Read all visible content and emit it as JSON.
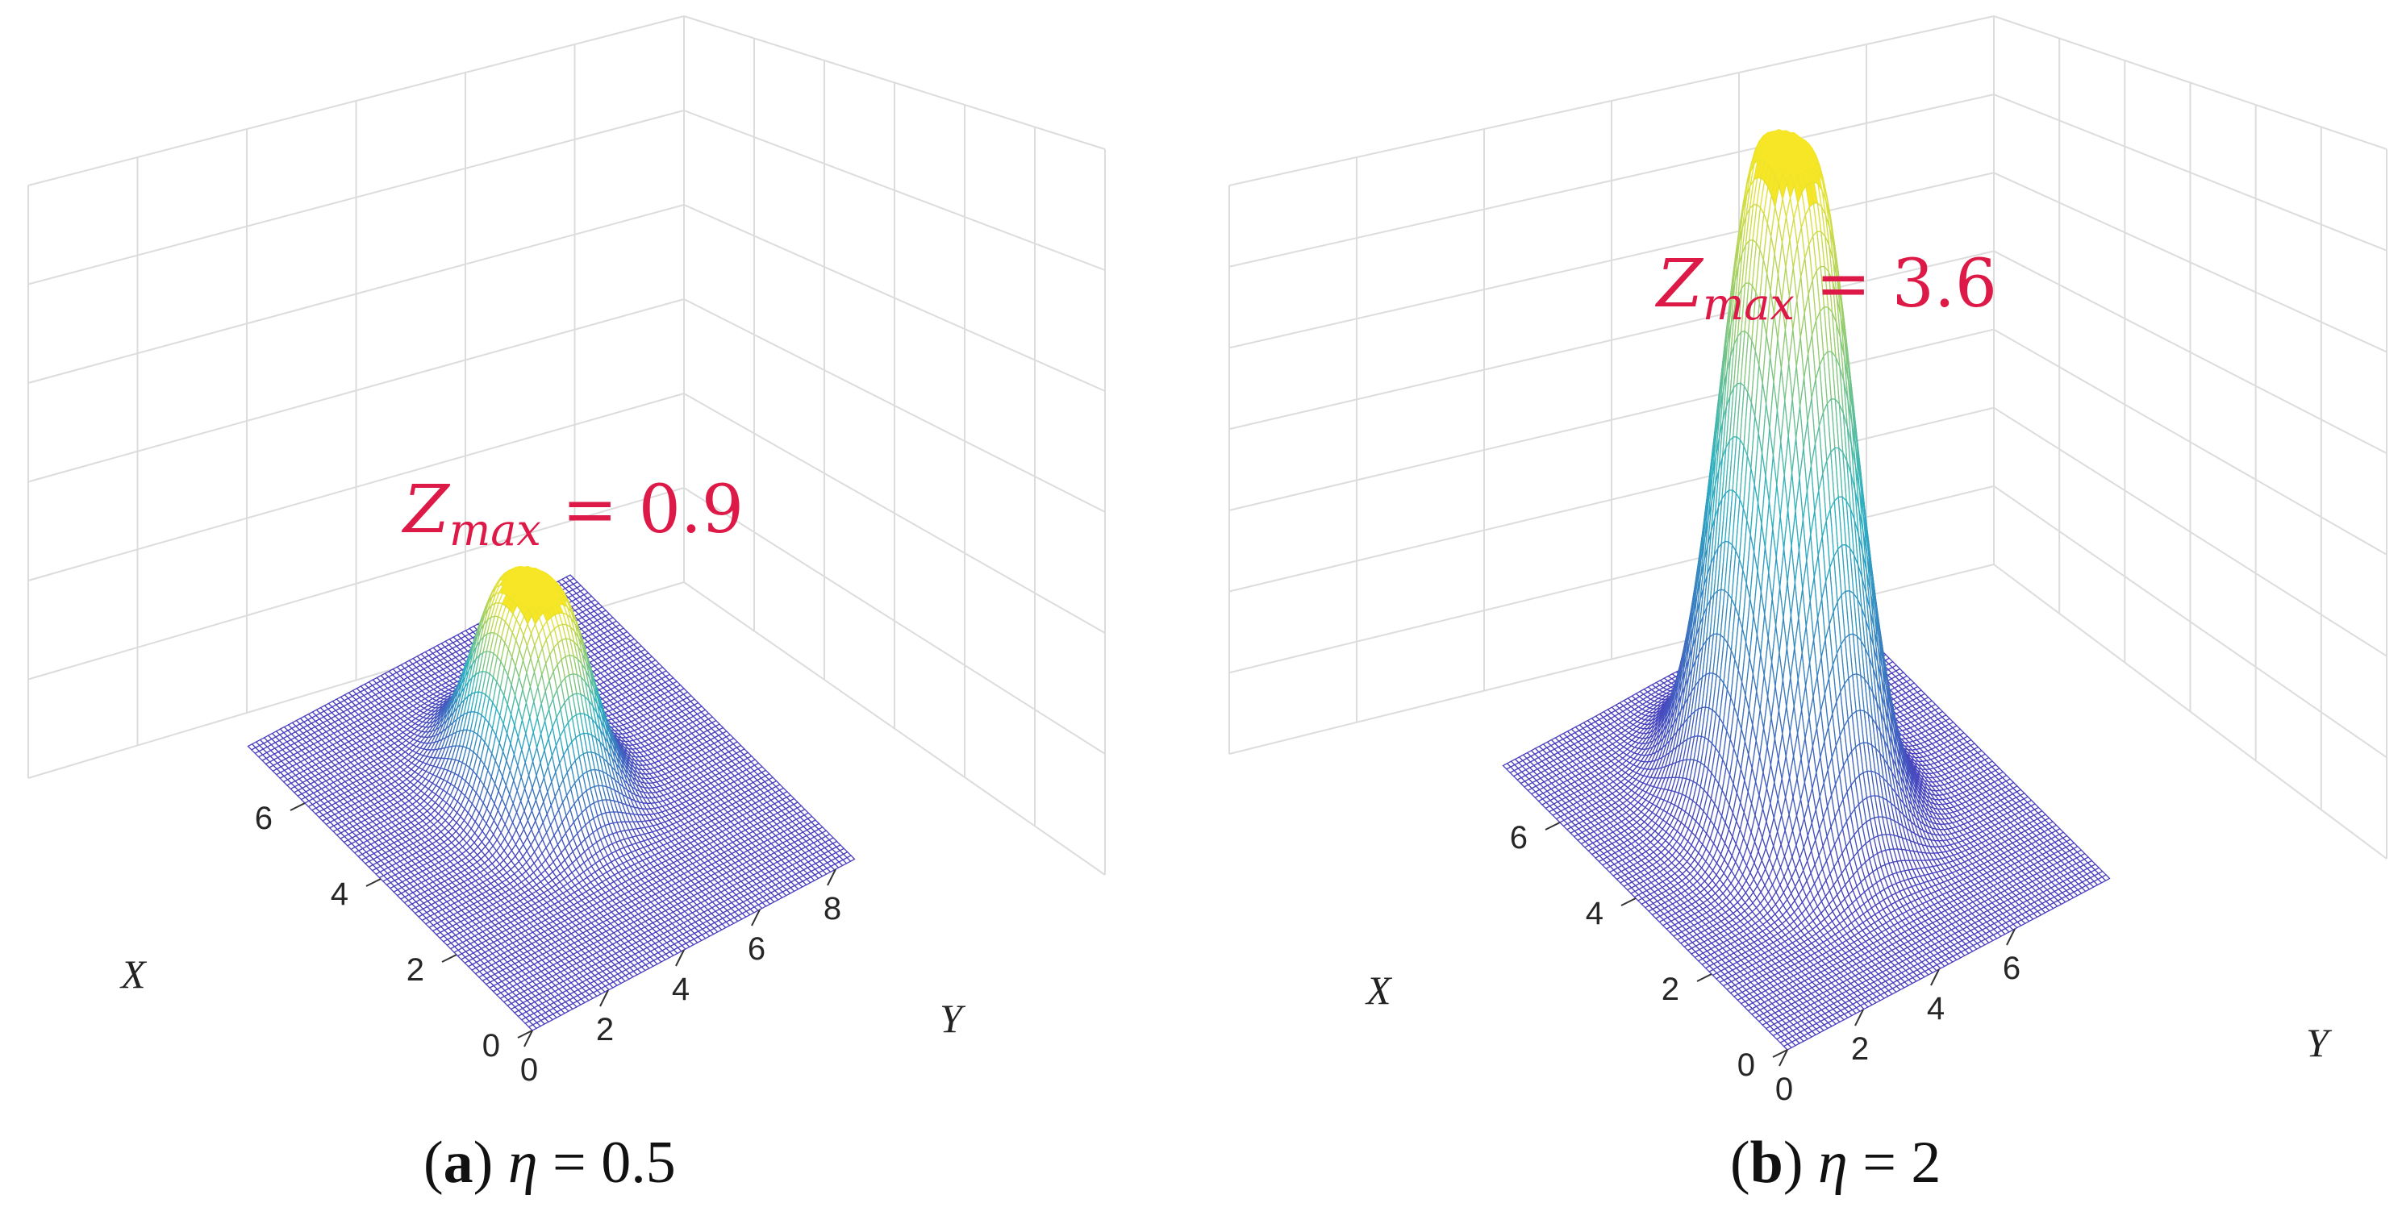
{
  "chart_data": [
    {
      "type": "surface",
      "panel": "a",
      "caption_label": "a",
      "caption_param_symbol": "η",
      "caption_eq": " = ",
      "caption_param_value": "0.5",
      "eta": 0.5,
      "annotation": {
        "symbol": "Z",
        "subscript": "max",
        "eq": " = ",
        "value": "0.9"
      },
      "z_max": 0.9,
      "x_label": "X",
      "y_label": "Y",
      "x_ticks": [
        "0",
        "2",
        "4",
        "6"
      ],
      "y_ticks": [
        "0",
        "2",
        "4",
        "6",
        "8"
      ],
      "x_range": [
        0,
        7.5
      ],
      "y_range": [
        0,
        8.5
      ],
      "center": [
        4.25,
        4.25
      ],
      "peak_radius": 0.45,
      "decay_width": 0.95,
      "colors": {
        "low": "#4b3fbf",
        "mid": "#2cb1c1",
        "high": "#f6e626",
        "annotation": "#dd1a47"
      }
    },
    {
      "type": "surface",
      "panel": "b",
      "caption_label": "b",
      "caption_param_symbol": "η",
      "caption_eq": " = ",
      "caption_param_value": "2",
      "eta": 2,
      "annotation": {
        "symbol": "Z",
        "subscript": "max",
        "eq": " = ",
        "value": "3.6"
      },
      "z_max": 3.6,
      "x_label": "X",
      "y_label": "Y",
      "x_ticks": [
        "0",
        "2",
        "4",
        "6"
      ],
      "y_ticks": [
        "0",
        "2",
        "4",
        "6"
      ],
      "x_range": [
        0,
        7.5
      ],
      "y_range": [
        0,
        8.5
      ],
      "center": [
        4.25,
        4.25
      ],
      "peak_radius": 0.45,
      "decay_width": 1.15,
      "colors": {
        "low": "#4b3fbf",
        "mid": "#2cb1c1",
        "high": "#f6e626",
        "annotation": "#dd1a47"
      }
    }
  ]
}
